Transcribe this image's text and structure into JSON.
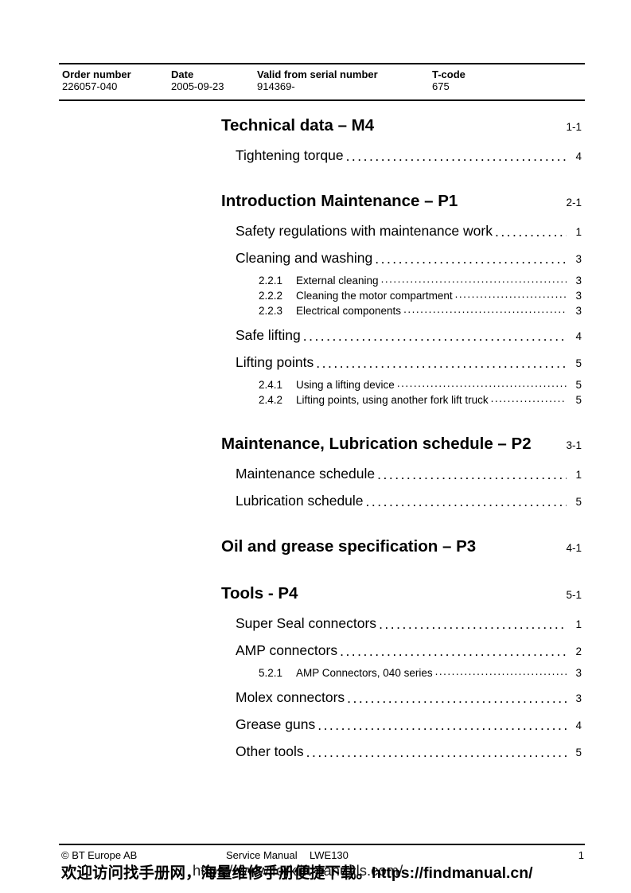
{
  "header": {
    "columns": [
      {
        "label": "Order number",
        "value": "226057-040"
      },
      {
        "label": "Date",
        "value": "2005-09-23"
      },
      {
        "label": "Valid from serial number",
        "value": "914369-"
      },
      {
        "label": "T-code",
        "value": "675"
      }
    ]
  },
  "toc": {
    "sections": [
      {
        "title": "Technical data – M4",
        "page": "1-1",
        "entries": [
          {
            "level": 1,
            "label": "Tightening torque",
            "page": "4"
          }
        ]
      },
      {
        "title": "Introduction Maintenance – P1",
        "page": "2-1",
        "entries": [
          {
            "level": 1,
            "label": "Safety regulations with maintenance work",
            "page": "1"
          },
          {
            "level": 1,
            "label": "Cleaning and washing",
            "page": "3"
          },
          {
            "level": 2,
            "number": "2.2.1",
            "label": "External cleaning",
            "page": "3"
          },
          {
            "level": 2,
            "number": "2.2.2",
            "label": "Cleaning the motor compartment",
            "page": "3"
          },
          {
            "level": 2,
            "number": "2.2.3",
            "label": "Electrical components",
            "page": "3"
          },
          {
            "level": 1,
            "label": "Safe lifting",
            "page": "4"
          },
          {
            "level": 1,
            "label": "Lifting points",
            "page": "5"
          },
          {
            "level": 2,
            "number": "2.4.1",
            "label": "Using a lifting device",
            "page": "5"
          },
          {
            "level": 2,
            "number": "2.4.2",
            "label": "Lifting points, using another fork lift truck",
            "page": "5"
          }
        ]
      },
      {
        "title": "Maintenance, Lubrication schedule – P2",
        "page": "3-1",
        "entries": [
          {
            "level": 1,
            "label": "Maintenance schedule",
            "page": "1"
          },
          {
            "level": 1,
            "label": "Lubrication schedule",
            "page": "5"
          }
        ]
      },
      {
        "title": "Oil and grease specification – P3",
        "page": "4-1",
        "entries": []
      },
      {
        "title": "Tools - P4",
        "page": "5-1",
        "entries": [
          {
            "level": 1,
            "label": "Super Seal connectors",
            "page": "1"
          },
          {
            "level": 1,
            "label": "AMP connectors",
            "page": "2"
          },
          {
            "level": 2,
            "number": "5.2.1",
            "label": "AMP Connectors, 040 series",
            "page": "3"
          },
          {
            "level": 1,
            "label": "Molex connectors",
            "page": "3"
          },
          {
            "level": 1,
            "label": "Grease guns",
            "page": "4"
          },
          {
            "level": 1,
            "label": "Other tools",
            "page": "5"
          }
        ]
      }
    ]
  },
  "footer": {
    "copyright": "© BT Europe AB",
    "doc_type": "Service Manual",
    "model": "LWE130",
    "page_number": "1"
  },
  "watermark": {
    "underlay_url": "https://www.forkliftmanuals.com/",
    "overlay_text": "欢迎访问找手册网，海量维修手册便捷下载。https://findmanual.cn/"
  }
}
